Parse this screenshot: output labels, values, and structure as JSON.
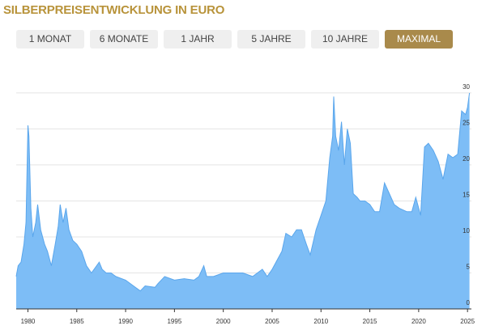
{
  "tabs": [
    {
      "label": "1 MONAT",
      "active": false
    },
    {
      "label": "6 MONATE",
      "active": false
    },
    {
      "label": "1 JAHR",
      "active": false
    },
    {
      "label": "5 JAHRE",
      "active": false
    },
    {
      "label": "10 JAHRE",
      "active": false
    },
    {
      "label": "MAXIMAL",
      "active": true
    }
  ],
  "chart_data": {
    "type": "area",
    "title": "SILBERPREISENTWICKLUNG IN EURO",
    "color": "#7dbdf6",
    "line_color": "#5aa6ec",
    "grid": true,
    "x": [
      1978.8,
      1979.0,
      1979.3,
      1979.6,
      1979.8,
      1980.0,
      1980.1,
      1980.3,
      1980.5,
      1980.8,
      1981.0,
      1981.3,
      1981.7,
      1982.0,
      1982.4,
      1982.8,
      1983.1,
      1983.3,
      1983.6,
      1983.9,
      1984.2,
      1984.6,
      1985.0,
      1985.5,
      1986.0,
      1986.5,
      1987.3,
      1987.6,
      1988.0,
      1988.5,
      1989.0,
      1990.0,
      1991.0,
      1991.5,
      1992.0,
      1993.0,
      1993.3,
      1994.0,
      1995.0,
      1996.0,
      1997.0,
      1997.5,
      1998.0,
      1998.3,
      1999.0,
      2000.0,
      2001.0,
      2002.0,
      2003.0,
      2004.0,
      2004.5,
      2005.0,
      2006.0,
      2006.4,
      2007.0,
      2007.5,
      2008.0,
      2008.5,
      2008.9,
      2009.5,
      2010.0,
      2010.5,
      2010.9,
      2011.2,
      2011.3,
      2011.5,
      2011.8,
      2012.1,
      2012.4,
      2012.7,
      2013.0,
      2013.3,
      2013.7,
      2014.0,
      2014.5,
      2015.0,
      2015.5,
      2016.0,
      2016.5,
      2017.0,
      2017.5,
      2018.0,
      2018.8,
      2019.3,
      2019.7,
      2020.2,
      2020.6,
      2021.0,
      2021.5,
      2022.0,
      2022.5,
      2023.0,
      2023.5,
      2024.0,
      2024.4,
      2024.8,
      2025.0,
      2025.2
    ],
    "values": [
      4.5,
      6,
      6.5,
      9,
      12,
      25.5,
      24,
      14,
      10,
      12,
      14.5,
      11,
      9,
      8,
      6,
      9,
      11.5,
      14.5,
      12,
      14,
      11,
      9.5,
      9,
      8,
      6,
      5,
      6.5,
      5.5,
      5,
      5,
      4.5,
      4,
      3,
      2.5,
      3.2,
      3,
      3.5,
      4.5,
      4,
      4.2,
      4,
      4.5,
      6,
      4.5,
      4.5,
      5,
      5,
      5,
      4.5,
      5.5,
      4.5,
      5.5,
      8,
      10.5,
      10,
      11,
      11,
      9,
      7.5,
      11,
      13,
      15,
      21,
      24,
      29.5,
      24,
      22,
      26,
      20,
      25,
      23,
      16,
      15.5,
      15,
      15,
      14.5,
      13.5,
      13.5,
      17.5,
      16,
      14.5,
      14,
      13.5,
      13.5,
      15.5,
      13,
      22.5,
      23,
      22,
      20.5,
      18,
      21.5,
      21,
      21.5,
      27.5,
      27,
      28,
      30
    ],
    "xlim": [
      1978.8,
      2025.4
    ],
    "ylim": [
      0,
      31
    ],
    "xticks": [
      1980,
      1985,
      1990,
      1995,
      2000,
      2005,
      2010,
      2015,
      2020,
      2025
    ],
    "yticks": [
      0,
      5,
      10,
      15,
      20,
      25,
      30
    ]
  }
}
